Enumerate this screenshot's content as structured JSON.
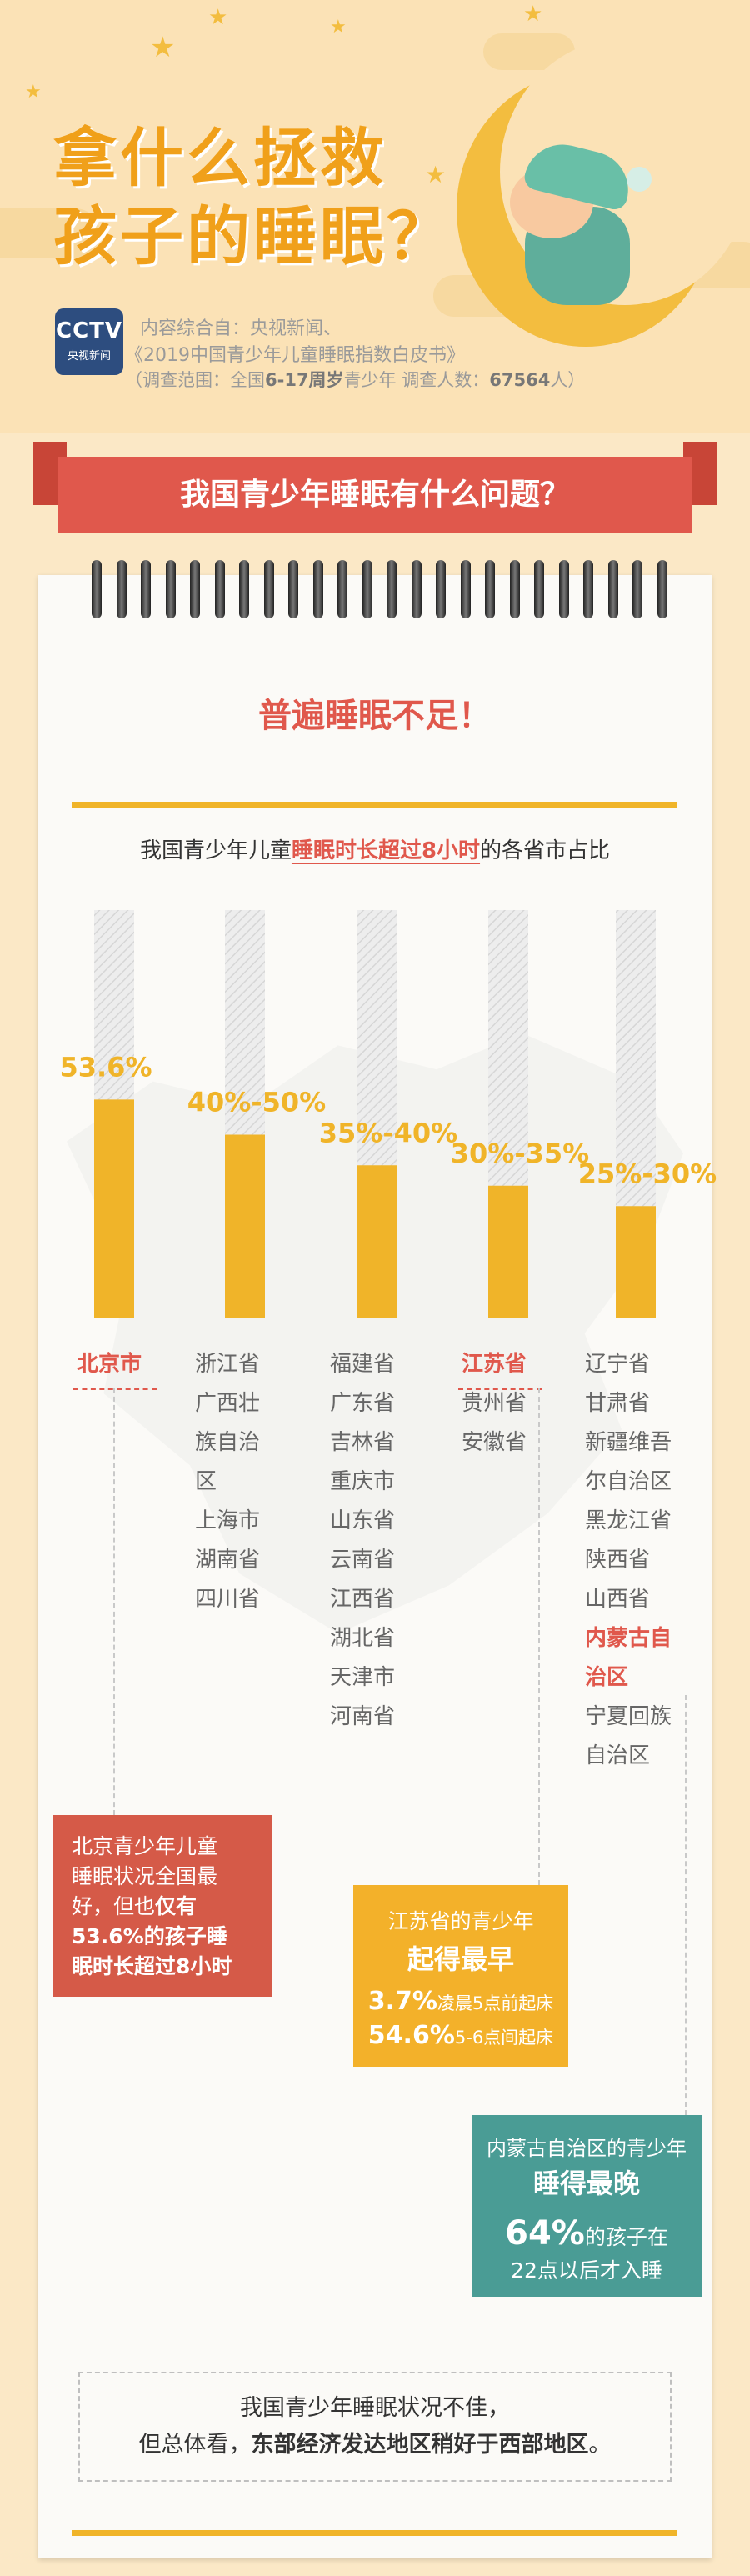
{
  "header": {
    "title_line1": "拿什么拯救",
    "title_line2": "孩子的睡眠？",
    "logo_text": "CCTV",
    "logo_sub": "央视新闻",
    "source_line1": "内容综合自：央视新闻、",
    "source_line2": "《2019中国青少年儿童睡眠指数白皮书》",
    "source_line3_prefix": "（调查范围：全国",
    "source_line3_age": "6-17周岁",
    "source_line3_mid": "青少年  调查人数：",
    "source_line3_count": "67564",
    "source_line3_suffix": "人）"
  },
  "section_banner": "我国青少年睡眠有什么问题？",
  "subheading": "普遍睡眠不足！",
  "chart_title": {
    "prefix": "我国青少年儿童",
    "highlight": "睡眠时长超过8小时",
    "suffix": "的各省市占比"
  },
  "chart_data": {
    "type": "bar",
    "title": "我国青少年儿童睡眠时长超过8小时的各省市占比",
    "categories": [
      "北京市",
      "浙江省等",
      "福建省等",
      "江苏省等",
      "辽宁省等"
    ],
    "value_labels": [
      "53.6%",
      "40%-50%",
      "35%-40%",
      "30%-35%",
      "25%-30%"
    ],
    "values": [
      53.6,
      45,
      37.5,
      32.5,
      27.5
    ],
    "ylim": [
      0,
      100
    ],
    "groups": [
      {
        "items": [
          "北京市"
        ],
        "highlight": [
          0
        ]
      },
      {
        "items": [
          "浙江省",
          "广西壮",
          "族自治",
          "区",
          "上海市",
          "湖南省",
          "四川省"
        ],
        "highlight": []
      },
      {
        "items": [
          "福建省",
          "广东省",
          "吉林省",
          "重庆市",
          "山东省",
          "云南省",
          "江西省",
          "湖北省",
          "天津市",
          "河南省"
        ],
        "highlight": []
      },
      {
        "items": [
          "江苏省",
          "贵州省",
          "安徽省"
        ],
        "highlight": [
          0
        ]
      },
      {
        "items": [
          "辽宁省",
          "甘肃省",
          "新疆维吾",
          "尔自治区",
          "黑龙江省",
          "陕西省",
          "山西省",
          "内蒙古自",
          "治区",
          "宁夏回族",
          "自治区"
        ],
        "highlight": [
          7,
          8
        ]
      }
    ],
    "colors": {
      "bar": "#f0b429",
      "track": "#e6e6e6",
      "label": "#f0b429",
      "highlight_text": "#e0584c"
    }
  },
  "callout_beijing": {
    "line1": "北京青少年儿童",
    "line2": "睡眠状况全国最",
    "line3_prefix": "好，但也",
    "line3_bold": "仅有",
    "line4_bold": "53.6%的孩子睡",
    "line5_bold": "眠时长超过8小时"
  },
  "callout_jiangsu": {
    "line1": "江苏省的青少年",
    "line2": "起得最早",
    "stat1_value": "3.7%",
    "stat1_text": "凌晨5点前起床",
    "stat2_value": "54.6%",
    "stat2_text": "5-6点间起床"
  },
  "callout_neimenggu": {
    "line1": "内蒙古自治区的青少年",
    "line2": "睡得最晚",
    "stat_value": "64%",
    "stat_text": "的孩子在",
    "line4": "22点以后才入睡"
  },
  "conclusion": {
    "line1": "我国青少年睡眠状况不佳，",
    "line2_prefix": "但总体看，",
    "line2_bold": "东部经济发达地区稍好于西部地区",
    "line2_suffix": "。"
  },
  "colors": {
    "accent": "#f0b429",
    "red": "#e0584c",
    "teal": "#4a9c95",
    "background": "#fbe8c6"
  }
}
